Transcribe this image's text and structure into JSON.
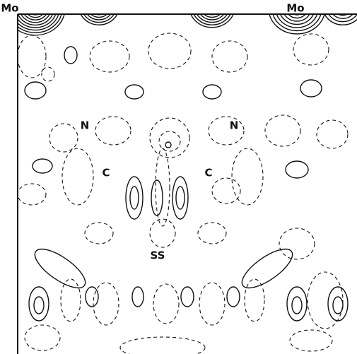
{
  "atom_labels": [
    "Mo",
    "Mo",
    "N",
    "N",
    "C",
    "C",
    "SS"
  ]
}
